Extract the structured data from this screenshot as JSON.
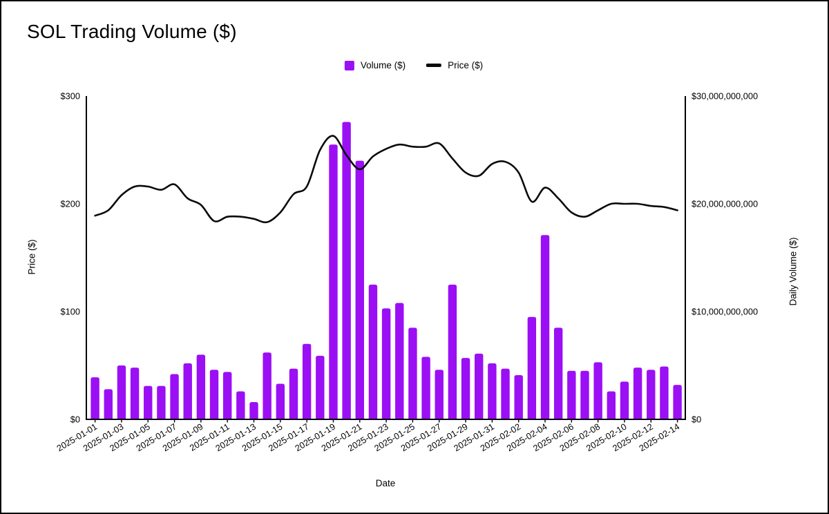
{
  "chart_data": {
    "type": "combo_bar_line",
    "title": "SOL Trading Volume ($)",
    "xlabel": "Date",
    "x": [
      "2025-01-01",
      "2025-01-02",
      "2025-01-03",
      "2025-01-04",
      "2025-01-05",
      "2025-01-06",
      "2025-01-07",
      "2025-01-08",
      "2025-01-09",
      "2025-01-10",
      "2025-01-11",
      "2025-01-12",
      "2025-01-13",
      "2025-01-14",
      "2025-01-15",
      "2025-01-16",
      "2025-01-17",
      "2025-01-18",
      "2025-01-19",
      "2025-01-20",
      "2025-01-21",
      "2025-01-22",
      "2025-01-23",
      "2025-01-24",
      "2025-01-25",
      "2025-01-26",
      "2025-01-27",
      "2025-01-28",
      "2025-01-29",
      "2025-01-30",
      "2025-01-31",
      "2025-02-01",
      "2025-02-02",
      "2025-02-03",
      "2025-02-04",
      "2025-02-05",
      "2025-02-06",
      "2025-02-07",
      "2025-02-08",
      "2025-02-09",
      "2025-02-10",
      "2025-02-11",
      "2025-02-12",
      "2025-02-13",
      "2025-02-14"
    ],
    "x_tick_step": 2,
    "series": [
      {
        "name": "Volume ($)",
        "type": "bar",
        "axis": "right",
        "color": "#9B0FF5",
        "values": [
          3900000000,
          2800000000,
          5000000000,
          4800000000,
          3100000000,
          3100000000,
          4200000000,
          5200000000,
          6000000000,
          4600000000,
          4400000000,
          2600000000,
          1600000000,
          6200000000,
          3300000000,
          4700000000,
          7000000000,
          5900000000,
          25500000000,
          27600000000,
          24000000000,
          12500000000,
          10300000000,
          10800000000,
          8500000000,
          5800000000,
          4600000000,
          12500000000,
          5700000000,
          6100000000,
          5200000000,
          4700000000,
          4100000000,
          9500000000,
          17100000000,
          8500000000,
          4500000000,
          4500000000,
          5300000000,
          2600000000,
          3500000000,
          4800000000,
          4600000000,
          4900000000,
          3200000000
        ]
      },
      {
        "name": "Price ($)",
        "type": "line",
        "axis": "left",
        "color": "#0a0a0a",
        "values": [
          189,
          194,
          208,
          216,
          216,
          213,
          218,
          205,
          199,
          184,
          188,
          188,
          186,
          183,
          192,
          209,
          216,
          250,
          263,
          245,
          232,
          244,
          251,
          255,
          253,
          253,
          256,
          242,
          229,
          226,
          237,
          239,
          229,
          202,
          215,
          205,
          192,
          188,
          194,
          200,
          200,
          200,
          198,
          197,
          194
        ]
      }
    ],
    "left_axis": {
      "label": "Price ($)",
      "min": 0,
      "max": 300,
      "tick_values": [
        0,
        100,
        200,
        300
      ],
      "tick_labels": [
        "$0",
        "$100",
        "$200",
        "$300"
      ]
    },
    "right_axis": {
      "label": "Daily Volume ($)",
      "min": 0,
      "max": 30000000000,
      "tick_values": [
        0,
        10000000000,
        20000000000,
        30000000000
      ],
      "tick_labels": [
        "$0",
        "$10,000,000,000",
        "$20,000,000,000",
        "$30,000,000,000"
      ]
    },
    "legend_position": "top-center",
    "grid": false,
    "background": "#ffffff",
    "axis_color": "#000000"
  }
}
